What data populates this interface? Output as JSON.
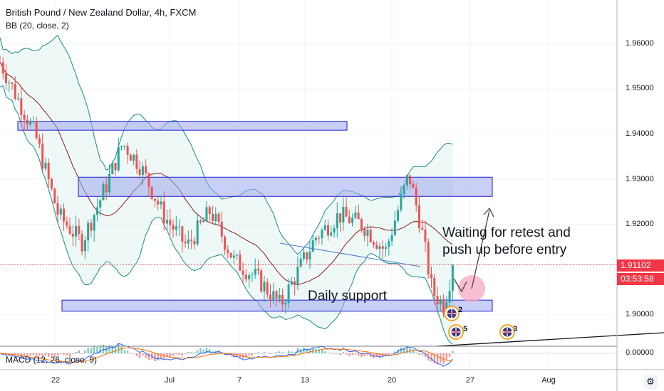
{
  "header": {
    "symbol_title": "British Pound / New Zealand Dollar, 4h, FXCM",
    "indicator_bb": "BB (20, close, 2)",
    "indicator_macd": "MACD (12, 26, close, 9)"
  },
  "annotations": {
    "retest_line1": "Waiting for retest and",
    "retest_line2": "push up before entry",
    "support": "Daily support"
  },
  "price_axis": {
    "ticks": [
      "1.96000",
      "1.95000",
      "1.94000",
      "1.93000",
      "1.92000",
      "1.91000",
      "1.90000"
    ],
    "current_price": "1.91102",
    "countdown": "03:53:58",
    "macd_tick": "0.00000"
  },
  "time_axis": {
    "ticks": [
      "22",
      "Jul",
      "7",
      "13",
      "20",
      "27",
      "Aug"
    ],
    "settings_glyph": "⚙"
  },
  "events": [
    {
      "count": "2",
      "icon": "flag-nz-icon"
    },
    {
      "count": "5",
      "icon": "flag-uk-icon"
    },
    {
      "count": "3",
      "icon": "flag-uk-icon"
    }
  ],
  "colors": {
    "up": "#26a69a",
    "down": "#ef5350",
    "zone_fill": "#9fa8f0",
    "zone_border": "#1f1fd0",
    "bb_band": "#1b8a8a",
    "bb_mid": "#8b1a1a",
    "macd_line": "#2962ff",
    "signal_line": "#ff6d00",
    "price_tag": "#f23645"
  },
  "chart_data": {
    "type": "candlestick",
    "title": "British Pound / New Zealand Dollar, 4h, FXCM",
    "y_range": [
      1.893,
      1.968
    ],
    "x_range": [
      "Jun 18",
      "Aug 3"
    ],
    "support_resistance_zones": [
      {
        "from": 1.9415,
        "to": 1.9422,
        "label": ""
      },
      {
        "from": 1.9268,
        "to": 1.9298,
        "label": ""
      },
      {
        "from": 1.9013,
        "to": 1.9025,
        "label": "Daily support"
      }
    ],
    "trend_price_segments": [
      {
        "t_day": 0,
        "price": 1.956
      },
      {
        "t_day": 3,
        "price": 1.94
      },
      {
        "t_day": 5,
        "price": 1.922
      },
      {
        "t_day": 7,
        "price": 1.916
      },
      {
        "t_day": 9,
        "price": 1.928
      },
      {
        "t_day": 10.5,
        "price": 1.938
      },
      {
        "t_day": 12,
        "price": 1.933
      },
      {
        "t_day": 14,
        "price": 1.922
      },
      {
        "t_day": 16,
        "price": 1.915
      },
      {
        "t_day": 18,
        "price": 1.923
      },
      {
        "t_day": 20,
        "price": 1.912
      },
      {
        "t_day": 22,
        "price": 1.908
      },
      {
        "t_day": 24,
        "price": 1.902
      },
      {
        "t_day": 25,
        "price": 1.907
      },
      {
        "t_day": 27,
        "price": 1.917
      },
      {
        "t_day": 29,
        "price": 1.922
      },
      {
        "t_day": 31,
        "price": 1.92
      },
      {
        "t_day": 33,
        "price": 1.914
      },
      {
        "t_day": 34.5,
        "price": 1.927
      },
      {
        "t_day": 35,
        "price": 1.931
      },
      {
        "t_day": 36,
        "price": 1.92
      },
      {
        "t_day": 37,
        "price": 1.905
      },
      {
        "t_day": 38,
        "price": 1.902
      },
      {
        "t_day": 38.8,
        "price": 1.911
      }
    ],
    "last_price": 1.91102
  }
}
